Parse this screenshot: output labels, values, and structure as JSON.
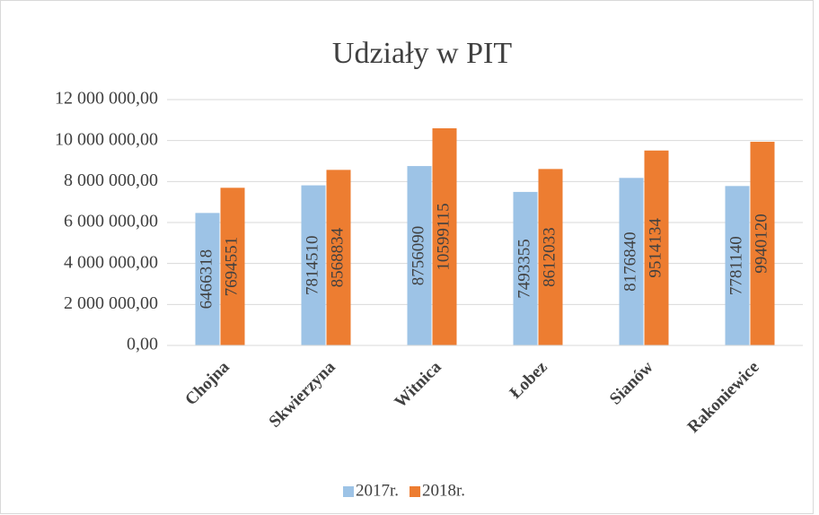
{
  "chart_data": {
    "type": "bar",
    "title": "Udziały w PIT",
    "categories": [
      "Chojna",
      "Skwierzyna",
      "Witnica",
      "Łobez",
      "Sianów",
      "Rakoniewice"
    ],
    "series": [
      {
        "name": "2017r.",
        "color": "#9dc3e6",
        "values": [
          6466318,
          7814510,
          8756090,
          7493355,
          8176840,
          7781140
        ]
      },
      {
        "name": "2018r.",
        "color": "#ed7d31",
        "values": [
          7694551,
          8568834,
          10599115,
          8612033,
          9514134,
          9940120
        ]
      }
    ],
    "ylim": [
      0,
      12000000
    ],
    "yticks": [
      {
        "value": 0,
        "label": "0,00"
      },
      {
        "value": 2000000,
        "label": "2 000 000,00"
      },
      {
        "value": 4000000,
        "label": "4 000 000,00"
      },
      {
        "value": 6000000,
        "label": "6 000 000,00"
      },
      {
        "value": 8000000,
        "label": "8 000 000,00"
      },
      {
        "value": 10000000,
        "label": "10 000 000,00"
      },
      {
        "value": 12000000,
        "label": "12 000 000,00"
      }
    ],
    "grid": true,
    "legend": "bottom"
  }
}
